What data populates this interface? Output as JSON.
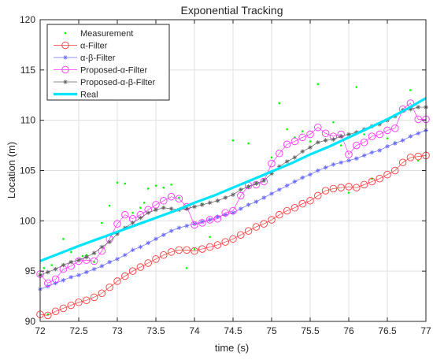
{
  "chart_data": {
    "type": "line",
    "title": "Exponential Tracking",
    "xlabel": "time (s)",
    "ylabel": "Location (m)",
    "xlim": [
      72,
      77
    ],
    "ylim": [
      90,
      120
    ],
    "x_ticks": [
      "72",
      "72.5",
      "73",
      "73.5",
      "74",
      "74.5",
      "75",
      "75.5",
      "76",
      "76.5",
      "77"
    ],
    "y_ticks": [
      "90",
      "95",
      "100",
      "105",
      "110",
      "115",
      "120"
    ],
    "grid": true,
    "legend_position": "top-left",
    "series": [
      {
        "name": "Measurement",
        "color": "#00ff00",
        "marker": "dot",
        "points": [
          [
            72.05,
            95.3
          ],
          [
            72.1,
            90.7
          ],
          [
            72.15,
            95.6
          ],
          [
            72.3,
            98.2
          ],
          [
            72.4,
            96.9
          ],
          [
            72.5,
            97.5
          ],
          [
            72.55,
            96.5
          ],
          [
            72.6,
            96.6
          ],
          [
            72.7,
            95.9
          ],
          [
            72.8,
            99.8
          ],
          [
            72.9,
            101.5
          ],
          [
            73.0,
            103.8
          ],
          [
            73.1,
            103.7
          ],
          [
            73.2,
            100.8
          ],
          [
            73.3,
            101.3
          ],
          [
            73.35,
            101.8
          ],
          [
            73.4,
            103.2
          ],
          [
            73.5,
            103.5
          ],
          [
            73.6,
            103.3
          ],
          [
            73.7,
            103.6
          ],
          [
            73.8,
            102.3
          ],
          [
            73.9,
            95.3
          ],
          [
            74.0,
            97.2
          ],
          [
            74.1,
            101.7
          ],
          [
            74.2,
            98.4
          ],
          [
            74.3,
            100.5
          ],
          [
            74.5,
            108.0
          ],
          [
            74.7,
            107.7
          ],
          [
            74.8,
            103.8
          ],
          [
            74.9,
            104.1
          ],
          [
            75.0,
            106.3
          ],
          [
            75.1,
            111.7
          ],
          [
            75.2,
            109.1
          ],
          [
            75.3,
            108.3
          ],
          [
            75.4,
            108.9
          ],
          [
            75.5,
            107.9
          ],
          [
            75.6,
            113.6
          ],
          [
            75.8,
            109.8
          ],
          [
            75.9,
            107.5
          ],
          [
            76.0,
            102.8
          ],
          [
            76.1,
            113.3
          ],
          [
            76.2,
            108.6
          ],
          [
            76.3,
            104.2
          ],
          [
            76.5,
            108.2
          ],
          [
            76.6,
            107.8
          ],
          [
            76.8,
            113.0
          ],
          [
            76.9,
            106.0
          ]
        ]
      },
      {
        "name": "α-Filter",
        "color": "#ff3b3b",
        "marker": "circle",
        "x": [
          72.0,
          72.1,
          72.2,
          72.3,
          72.4,
          72.5,
          72.6,
          72.7,
          72.8,
          72.9,
          73.0,
          73.1,
          73.2,
          73.3,
          73.4,
          73.5,
          73.6,
          73.7,
          73.8,
          73.9,
          74.0,
          74.1,
          74.2,
          74.3,
          74.4,
          74.5,
          74.6,
          74.7,
          74.8,
          74.9,
          75.0,
          75.1,
          75.2,
          75.3,
          75.4,
          75.5,
          75.6,
          75.7,
          75.8,
          75.9,
          76.0,
          76.1,
          76.2,
          76.3,
          76.4,
          76.5,
          76.6,
          76.7,
          76.8,
          76.9,
          77.0
        ],
        "y": [
          90.7,
          90.6,
          91.0,
          91.3,
          91.6,
          91.9,
          92.1,
          92.4,
          92.8,
          93.4,
          94.0,
          94.5,
          95.0,
          95.4,
          95.8,
          96.2,
          96.6,
          96.9,
          97.1,
          97.1,
          97.0,
          97.2,
          97.4,
          97.6,
          97.9,
          98.2,
          98.6,
          99.0,
          99.4,
          99.7,
          100.1,
          100.6,
          101.0,
          101.3,
          101.7,
          102.0,
          102.5,
          103.0,
          103.2,
          103.3,
          103.4,
          103.3,
          103.6,
          103.9,
          104.2,
          104.6,
          105.0,
          105.8,
          106.3,
          106.4,
          106.5
        ]
      },
      {
        "name": "α-β-Filter",
        "color": "#6b6bff",
        "marker": "star",
        "x": [
          72.0,
          72.1,
          72.2,
          72.3,
          72.4,
          72.5,
          72.6,
          72.7,
          72.8,
          72.9,
          73.0,
          73.1,
          73.2,
          73.3,
          73.4,
          73.5,
          73.6,
          73.7,
          73.8,
          73.9,
          74.0,
          74.1,
          74.2,
          74.3,
          74.4,
          74.5,
          74.6,
          74.7,
          74.8,
          74.9,
          75.0,
          75.1,
          75.2,
          75.3,
          75.4,
          75.5,
          75.6,
          75.7,
          75.8,
          75.9,
          76.0,
          76.1,
          76.2,
          76.3,
          76.4,
          76.5,
          76.6,
          76.7,
          76.8,
          76.9,
          77.0
        ],
        "y": [
          93.2,
          93.5,
          93.8,
          94.1,
          94.4,
          94.6,
          94.9,
          95.2,
          95.5,
          95.9,
          96.2,
          96.6,
          97.1,
          97.4,
          97.8,
          98.2,
          98.6,
          99.0,
          99.3,
          99.5,
          99.7,
          99.9,
          100.1,
          100.4,
          100.6,
          100.8,
          101.2,
          101.6,
          101.9,
          102.3,
          102.7,
          103.1,
          103.5,
          103.9,
          104.3,
          104.6,
          105.0,
          105.3,
          105.6,
          105.8,
          106.0,
          106.2,
          106.5,
          106.8,
          107.0,
          107.4,
          107.7,
          108.0,
          108.4,
          108.7,
          109.0
        ]
      },
      {
        "name": "Proposed-α-Filter",
        "color": "#ff33ff",
        "marker": "circle",
        "x": [
          72.0,
          72.1,
          72.2,
          72.3,
          72.4,
          72.5,
          72.6,
          72.7,
          72.8,
          72.9,
          73.0,
          73.1,
          73.2,
          73.3,
          73.4,
          73.5,
          73.6,
          73.7,
          73.8,
          73.9,
          74.0,
          74.1,
          74.2,
          74.3,
          74.4,
          74.5,
          74.6,
          74.7,
          74.8,
          74.9,
          75.0,
          75.1,
          75.2,
          75.3,
          75.4,
          75.5,
          75.6,
          75.7,
          75.8,
          75.9,
          76.0,
          76.1,
          76.2,
          76.3,
          76.4,
          76.5,
          76.6,
          76.7,
          76.8,
          76.9,
          77.0
        ],
        "y": [
          94.7,
          93.8,
          94.2,
          95.2,
          95.5,
          96.0,
          96.1,
          96.0,
          97.0,
          98.2,
          99.7,
          100.6,
          100.2,
          100.6,
          101.1,
          101.6,
          102.0,
          102.4,
          102.2,
          101.4,
          99.6,
          99.8,
          100.1,
          100.2,
          100.8,
          101.0,
          102.5,
          103.5,
          103.6,
          103.9,
          105.7,
          106.7,
          107.6,
          107.9,
          108.3,
          108.6,
          109.3,
          108.7,
          108.4,
          108.6,
          106.6,
          107.5,
          107.8,
          108.4,
          108.6,
          109.0,
          109.2,
          111.1,
          111.7,
          110.1,
          110.1
        ]
      },
      {
        "name": "Proposed-α-β-Filter",
        "color": "#606060",
        "marker": "star",
        "x": [
          72.0,
          72.1,
          72.2,
          72.3,
          72.4,
          72.5,
          72.6,
          72.7,
          72.8,
          72.9,
          73.0,
          73.1,
          73.2,
          73.3,
          73.4,
          73.5,
          73.6,
          73.7,
          73.8,
          73.9,
          74.0,
          74.1,
          74.2,
          74.3,
          74.4,
          74.5,
          74.6,
          74.7,
          74.8,
          74.9,
          75.0,
          75.1,
          75.2,
          75.3,
          75.4,
          75.5,
          75.6,
          75.7,
          75.8,
          75.9,
          76.0,
          76.1,
          76.2,
          76.3,
          76.4,
          76.5,
          76.6,
          76.7,
          76.8,
          76.9,
          77.0
        ],
        "y": [
          94.6,
          94.9,
          95.2,
          95.6,
          95.9,
          96.1,
          96.4,
          96.8,
          97.4,
          97.9,
          98.7,
          99.3,
          99.8,
          100.3,
          100.8,
          101.1,
          101.3,
          101.2,
          101.1,
          101.2,
          101.4,
          101.6,
          101.8,
          102.0,
          102.3,
          102.6,
          103.1,
          103.4,
          103.7,
          104.0,
          104.7,
          105.4,
          105.9,
          106.3,
          106.9,
          107.3,
          107.8,
          108.0,
          108.1,
          108.4,
          108.6,
          108.8,
          109.1,
          109.4,
          109.6,
          110.0,
          110.4,
          111.0,
          111.1,
          111.3,
          111.3
        ]
      },
      {
        "name": "Real",
        "color": "#00e5ff",
        "marker": "none",
        "x": [
          72.0,
          72.25,
          72.5,
          72.75,
          73.0,
          73.25,
          73.5,
          73.75,
          74.0,
          74.25,
          74.5,
          74.75,
          75.0,
          75.25,
          75.5,
          75.75,
          76.0,
          76.25,
          76.5,
          76.75,
          77.0
        ],
        "y": [
          96.0,
          96.75,
          97.5,
          98.2,
          98.9,
          99.6,
          100.3,
          101.0,
          101.8,
          102.5,
          103.3,
          104.1,
          104.9,
          105.7,
          106.6,
          107.4,
          108.3,
          109.2,
          110.1,
          111.1,
          112.2
        ]
      }
    ]
  }
}
